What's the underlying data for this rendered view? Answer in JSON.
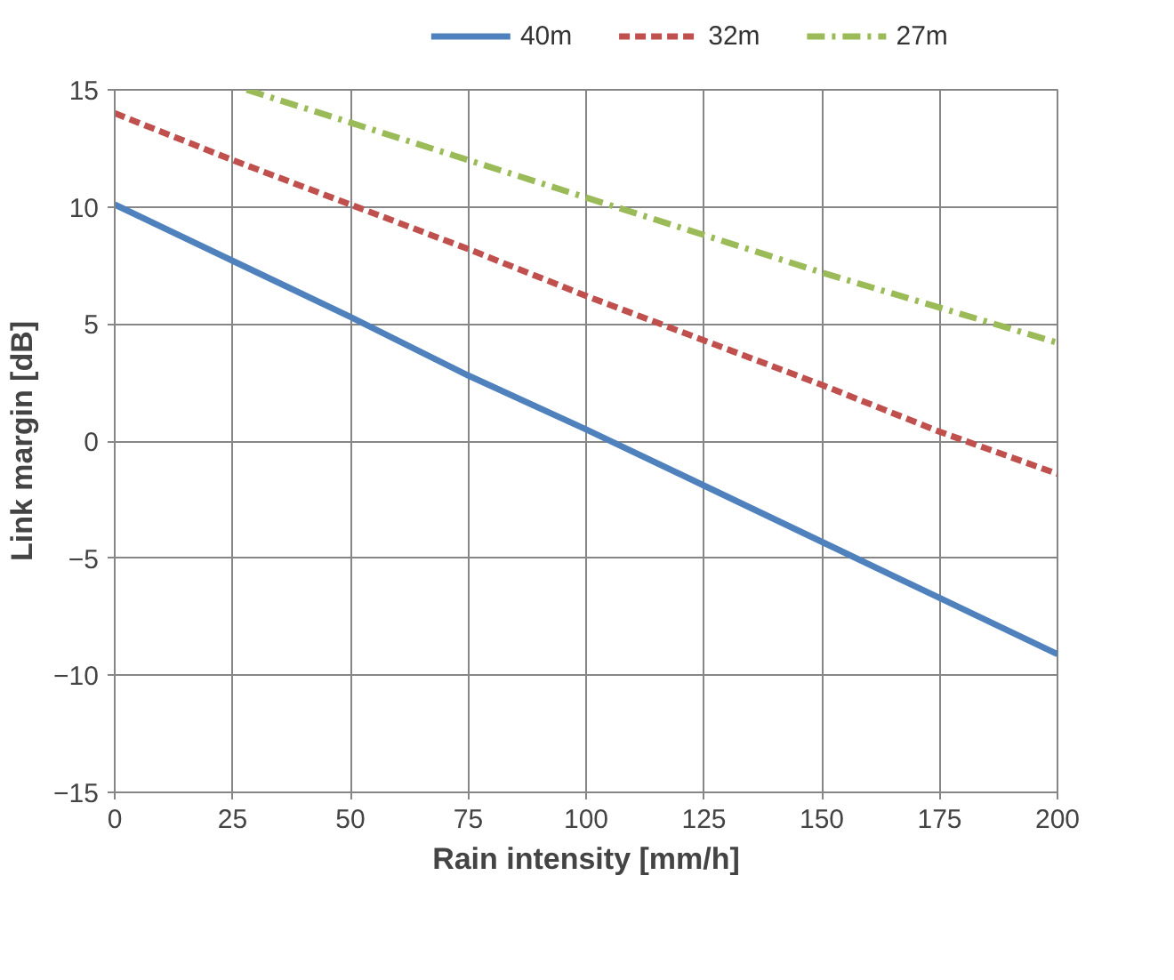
{
  "chart_data": {
    "type": "line",
    "xlabel": "Rain intensity [mm/h]",
    "ylabel": "Link margin [dB]",
    "xlim": [
      0,
      200
    ],
    "xticks": [
      0,
      25,
      50,
      75,
      100,
      125,
      150,
      175,
      200
    ],
    "ylim": [
      -15,
      15
    ],
    "yticks": [
      -15,
      -10,
      -5,
      0,
      5,
      10,
      15
    ],
    "grid": true,
    "legend": "top",
    "series": [
      {
        "name": "40m",
        "color": "#4f81bd",
        "line_style": "solid",
        "x": [
          0,
          25,
          50,
          75,
          100,
          125,
          150,
          175,
          200
        ],
        "values": [
          10.1,
          7.7,
          5.3,
          2.8,
          0.5,
          -1.9,
          -4.3,
          -6.7,
          -9.1
        ]
      },
      {
        "name": "32m",
        "color": "#c0504d",
        "line_style": "dashed",
        "x": [
          0,
          25,
          50,
          75,
          100,
          125,
          150,
          175,
          200
        ],
        "values": [
          14.0,
          12.0,
          10.1,
          8.2,
          6.2,
          4.3,
          2.4,
          0.4,
          -1.4
        ]
      },
      {
        "name": "27m",
        "color": "#9bbb59",
        "line_style": "dashdot",
        "x": [
          28,
          50,
          75,
          100,
          125,
          150,
          175,
          200
        ],
        "values": [
          15.0,
          13.6,
          12.0,
          10.4,
          8.8,
          7.2,
          5.7,
          4.2
        ]
      }
    ]
  }
}
